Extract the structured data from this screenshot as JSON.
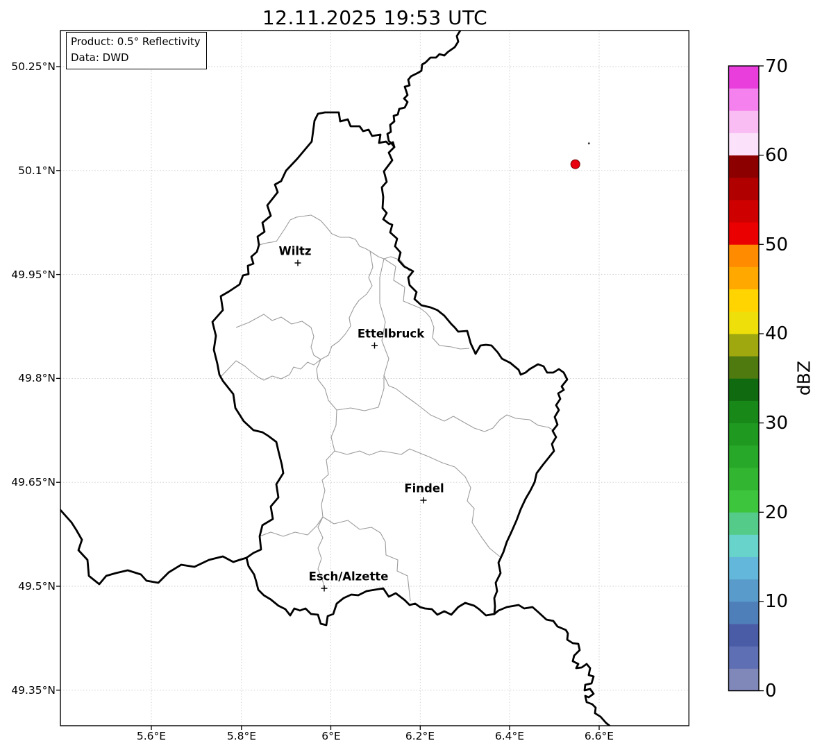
{
  "title": "12.11.2025 19:53 UTC",
  "info_box": {
    "product": "Product: 0.5° Reflectivity",
    "data_source": "Data: DWD"
  },
  "axes": {
    "x_ticks": [
      "5.6°E",
      "5.8°E",
      "6°E",
      "6.2°E",
      "6.4°E",
      "6.6°E"
    ],
    "y_ticks": [
      "50.25°N",
      "50.1°N",
      "49.95°N",
      "49.8°N",
      "49.65°N",
      "49.5°N",
      "49.35°N"
    ]
  },
  "map": {
    "cities": [
      {
        "name": "Wiltz"
      },
      {
        "name": "Ettelbruck"
      },
      {
        "name": "Findel"
      },
      {
        "name": "Esch/Alzette"
      }
    ]
  },
  "markers": {
    "echo_dot_color": "#e8000e",
    "echo_dot_edge": "#6e0000",
    "small_dot_color": "#333333"
  },
  "colorbar": {
    "label": "dBZ",
    "unit": "dBZ",
    "range": [
      0,
      70
    ],
    "tick_labels_top_to_bottom": [
      "70",
      "60",
      "50",
      "40",
      "30",
      "20",
      "10",
      "0"
    ],
    "segments_bottom_to_top": [
      "#8087b9",
      "#5e6fb3",
      "#4b5ca7",
      "#4f7fb9",
      "#599bca",
      "#62b7db",
      "#67d3cb",
      "#55cb8a",
      "#3dc53d",
      "#32b632",
      "#28a828",
      "#209920",
      "#188818",
      "#106b10",
      "#4f7a10",
      "#9fa90f",
      "#eedf0a",
      "#ffd400",
      "#ffa800",
      "#ff8c00",
      "#ea0000",
      "#cf0000",
      "#b00000",
      "#8c0000",
      "#fce1fa",
      "#f9bdf4",
      "#f581ee",
      "#e93ddc"
    ]
  }
}
